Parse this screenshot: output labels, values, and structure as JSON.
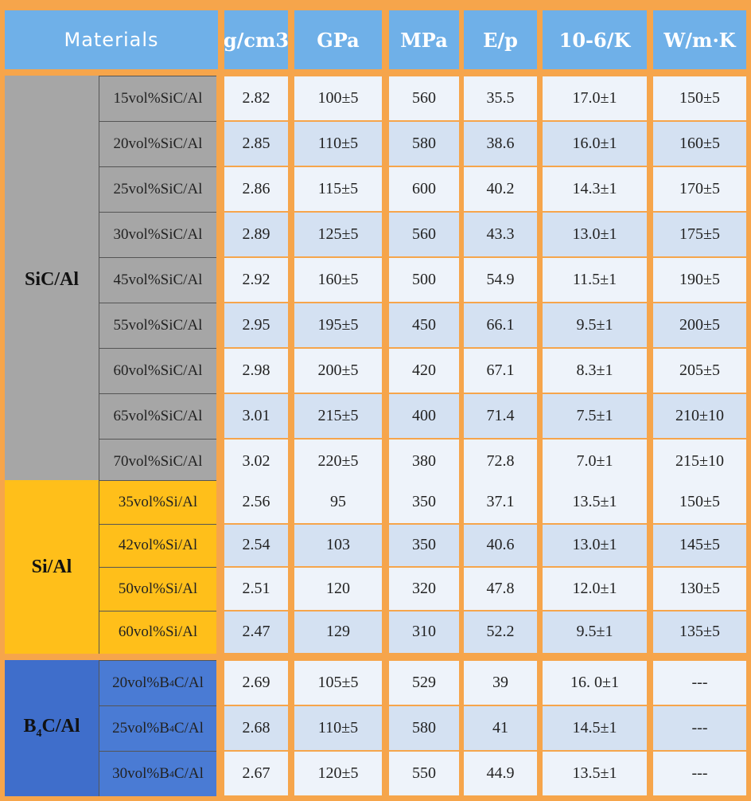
{
  "table": {
    "materials_header": "Materials",
    "column_headers": [
      "g/cm3",
      "GPa",
      "MPa",
      "E/p",
      "10-6/K",
      "W/m·K"
    ],
    "groups": [
      {
        "name": "SiC/Al",
        "rows": [
          {
            "material": "15vol%SiC/Al",
            "values": [
              "2.82",
              "100±5",
              "560",
              "35.5",
              "17.0±1",
              "150±5"
            ]
          },
          {
            "material": "20vol%SiC/Al",
            "values": [
              "2.85",
              "110±5",
              "580",
              "38.6",
              "16.0±1",
              "160±5"
            ]
          },
          {
            "material": "25vol%SiC/Al",
            "values": [
              "2.86",
              "115±5",
              "600",
              "40.2",
              "14.3±1",
              "170±5"
            ]
          },
          {
            "material": "30vol%SiC/Al",
            "values": [
              "2.89",
              "125±5",
              "560",
              "43.3",
              "13.0±1",
              "175±5"
            ]
          },
          {
            "material": "45vol%SiC/Al",
            "values": [
              "2.92",
              "160±5",
              "500",
              "54.9",
              "11.5±1",
              "190±5"
            ]
          },
          {
            "material": "55vol%SiC/Al",
            "values": [
              "2.95",
              "195±5",
              "450",
              "66.1",
              "9.5±1",
              "200±5"
            ]
          },
          {
            "material": "60vol%SiC/Al",
            "values": [
              "2.98",
              "200±5",
              "420",
              "67.1",
              "8.3±1",
              "205±5"
            ]
          },
          {
            "material": "65vol%SiC/Al",
            "values": [
              "3.01",
              "215±5",
              "400",
              "71.4",
              "7.5±1",
              "210±10"
            ]
          },
          {
            "material": "70vol%SiC/Al",
            "values": [
              "3.02",
              "220±5",
              "380",
              "72.8",
              "7.0±1",
              "215±10"
            ]
          }
        ]
      },
      {
        "name": "Si/Al",
        "rows": [
          {
            "material": "35vol%Si/Al",
            "values": [
              "2.56",
              "95",
              "350",
              "37.1",
              "13.5±1",
              "150±5"
            ]
          },
          {
            "material": "42vol%Si/Al",
            "values": [
              "2.54",
              "103",
              "350",
              "40.6",
              "13.0±1",
              "145±5"
            ]
          },
          {
            "material": "50vol%Si/Al",
            "values": [
              "2.51",
              "120",
              "320",
              "47.8",
              "12.0±1",
              "130±5"
            ]
          },
          {
            "material": "60vol%Si/Al",
            "values": [
              "2.47",
              "129",
              "310",
              "52.2",
              "9.5±1",
              "135±5"
            ]
          }
        ]
      },
      {
        "name": "B4C/Al",
        "rows": [
          {
            "material": "20vol%B4C/Al",
            "values": [
              "2.69",
              "105±5",
              "529",
              "39",
              "16. 0±1",
              "---"
            ]
          },
          {
            "material": "25vol%B4C/Al",
            "values": [
              "2.68",
              "110±5",
              "580",
              "41",
              "14.5±1",
              "---"
            ]
          },
          {
            "material": "30vol%B4C/Al",
            "values": [
              "2.67",
              "120±5",
              "550",
              "44.9",
              "13.5±1",
              "---"
            ]
          }
        ]
      }
    ]
  },
  "colors": {
    "frame": "#f6a54b",
    "header": "#6fb0e8",
    "sic_group": "#a6a6a6",
    "si_group": "#ffbf1a",
    "b4c_group": "#3f6ecb",
    "band_light": "#eef3fa",
    "band_dark": "#d4e1f2"
  }
}
